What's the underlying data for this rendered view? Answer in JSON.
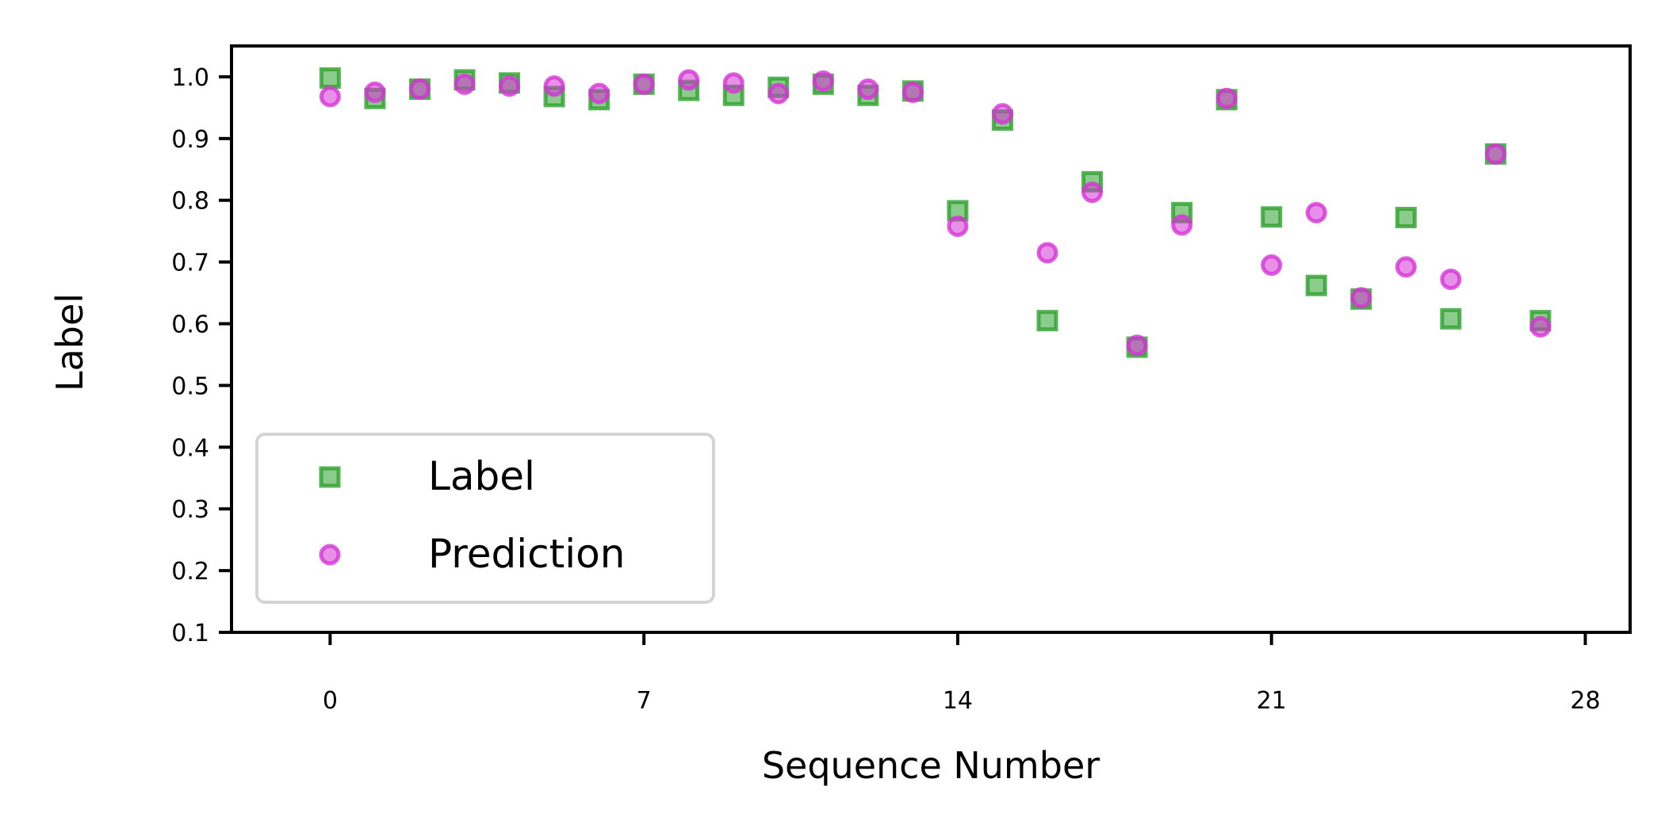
{
  "chart_data": {
    "type": "scatter",
    "xlabel": "Sequence Number",
    "ylabel": "Label",
    "xlim": [
      -2.2,
      29.0
    ],
    "ylim": [
      0.1,
      1.05
    ],
    "x_ticks": [
      "0",
      "7",
      "14",
      "21",
      "28"
    ],
    "y_ticks": [
      "0.1",
      "0.2",
      "0.3",
      "0.4",
      "0.5",
      "0.6",
      "0.7",
      "0.8",
      "0.9",
      "1.0"
    ],
    "grid": false,
    "legend_position": "lower-left",
    "series": [
      {
        "name": "Label",
        "marker": "square",
        "color": "#2ca02c",
        "x": [
          0,
          1,
          2,
          3,
          4,
          5,
          6,
          7,
          8,
          9,
          10,
          11,
          12,
          13,
          14,
          15,
          16,
          17,
          18,
          19,
          20,
          21,
          22,
          23,
          24,
          25,
          26,
          27
        ],
        "y": [
          0.998,
          0.965,
          0.98,
          0.995,
          0.99,
          0.968,
          0.963,
          0.988,
          0.978,
          0.97,
          0.983,
          0.988,
          0.97,
          0.977,
          0.783,
          0.93,
          0.605,
          0.83,
          0.562,
          0.78,
          0.963,
          0.773,
          0.662,
          0.64,
          0.772,
          0.608,
          0.875,
          0.605
        ]
      },
      {
        "name": "Prediction",
        "marker": "circle",
        "color": "#d633d6",
        "x": [
          0,
          1,
          2,
          3,
          4,
          5,
          6,
          7,
          8,
          9,
          10,
          11,
          12,
          13,
          14,
          15,
          16,
          17,
          18,
          19,
          20,
          21,
          22,
          23,
          24,
          25,
          26,
          27
        ],
        "y": [
          0.968,
          0.975,
          0.98,
          0.988,
          0.985,
          0.985,
          0.973,
          0.988,
          0.995,
          0.99,
          0.973,
          0.993,
          0.98,
          0.975,
          0.758,
          0.94,
          0.715,
          0.813,
          0.565,
          0.76,
          0.965,
          0.695,
          0.78,
          0.642,
          0.692,
          0.672,
          0.875,
          0.595
        ]
      }
    ]
  }
}
